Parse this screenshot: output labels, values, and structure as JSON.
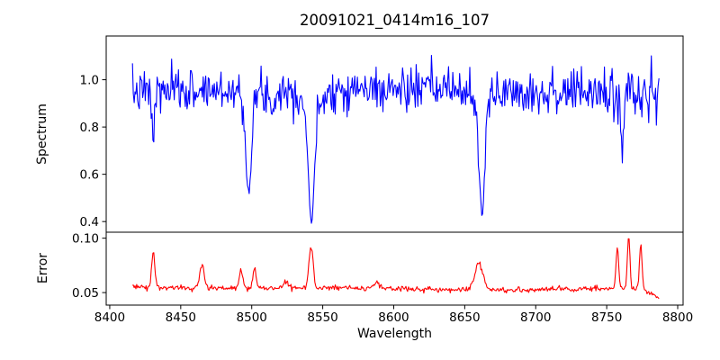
{
  "figure": {
    "title": "20091021_0414m16_107",
    "background_color": "#ffffff",
    "axis_color": "#000000",
    "text_color": "#000000"
  },
  "chart_data": [
    {
      "type": "line",
      "panel": "spectrum",
      "ylabel": "Spectrum",
      "line_color": "#0000ff",
      "legend": "none",
      "grid": false,
      "xlim": [
        8397.5,
        8803.8
      ],
      "ylim": [
        0.355,
        1.185
      ],
      "y_ticks": [
        1.0,
        0.8,
        0.6,
        0.4
      ],
      "y_tick_labels": [
        "1.0",
        "0.8",
        "0.6",
        "0.4"
      ],
      "x_data_range": [
        8416,
        8787
      ],
      "sample_step": 0.6,
      "seed": 7,
      "noise_sigma": 0.045,
      "high_noise_after": 8740,
      "high_noise_factor": 1.3,
      "continuum_points": [
        [
          8416,
          0.945
        ],
        [
          8460,
          0.955
        ],
        [
          8550,
          0.96
        ],
        [
          8650,
          0.958
        ],
        [
          8720,
          0.945
        ],
        [
          8787,
          0.94
        ]
      ],
      "absorption_lines": [
        {
          "center": 8430.6,
          "depth": 0.21,
          "sigma": 0.9
        },
        {
          "center": 8498.0,
          "depth": 0.37,
          "sigma": 1.8
        },
        {
          "center": 8498.0,
          "depth": 0.08,
          "sigma": 4.0
        },
        {
          "center": 8514.0,
          "depth": 0.1,
          "sigma": 1.2
        },
        {
          "center": 8542.1,
          "depth": 0.5,
          "sigma": 2.2
        },
        {
          "center": 8542.1,
          "depth": 0.08,
          "sigma": 5.5
        },
        {
          "center": 8662.1,
          "depth": 0.46,
          "sigma": 2.0
        },
        {
          "center": 8662.1,
          "depth": 0.08,
          "sigma": 5.0
        },
        {
          "center": 8761.0,
          "depth": 0.25,
          "sigma": 1.0
        }
      ]
    },
    {
      "type": "line",
      "panel": "error",
      "ylabel": "Error",
      "xlabel": "Wavelength",
      "line_color": "#ff0000",
      "legend": "none",
      "grid": false,
      "xlim": [
        8397.5,
        8803.8
      ],
      "ylim": [
        0.0385,
        0.1055
      ],
      "y_ticks": [
        0.1,
        0.05
      ],
      "y_tick_labels": [
        "0.10",
        "0.05"
      ],
      "x_ticks": [
        8400,
        8450,
        8500,
        8550,
        8600,
        8650,
        8700,
        8750,
        8800
      ],
      "x_tick_labels": [
        "8400",
        "8450",
        "8500",
        "8550",
        "8600",
        "8650",
        "8700",
        "8750",
        "8800"
      ],
      "x_data_range": [
        8416,
        8787
      ],
      "sample_step": 0.6,
      "seed": 3,
      "noise_sigma": 0.0013,
      "baseline_points": [
        [
          8416,
          0.0555
        ],
        [
          8480,
          0.054
        ],
        [
          8560,
          0.0545
        ],
        [
          8640,
          0.0527
        ],
        [
          8700,
          0.0525
        ],
        [
          8755,
          0.054
        ],
        [
          8775,
          0.053
        ],
        [
          8782,
          0.048
        ],
        [
          8787,
          0.046
        ]
      ],
      "peaks": [
        {
          "center": 8430.6,
          "height": 0.033,
          "sigma": 1.1
        },
        {
          "center": 8465.0,
          "height": 0.023,
          "sigma": 1.4
        },
        {
          "center": 8492.5,
          "height": 0.017,
          "sigma": 1.2
        },
        {
          "center": 8502.0,
          "height": 0.019,
          "sigma": 1.2
        },
        {
          "center": 8524.0,
          "height": 0.006,
          "sigma": 1.5
        },
        {
          "center": 8541.8,
          "height": 0.037,
          "sigma": 1.5
        },
        {
          "center": 8588.0,
          "height": 0.006,
          "sigma": 1.5
        },
        {
          "center": 8660.0,
          "height": 0.024,
          "sigma": 2.8
        },
        {
          "center": 8757.5,
          "height": 0.04,
          "sigma": 0.9
        },
        {
          "center": 8765.5,
          "height": 0.049,
          "sigma": 0.9
        },
        {
          "center": 8774.0,
          "height": 0.041,
          "sigma": 0.9
        }
      ]
    }
  ]
}
